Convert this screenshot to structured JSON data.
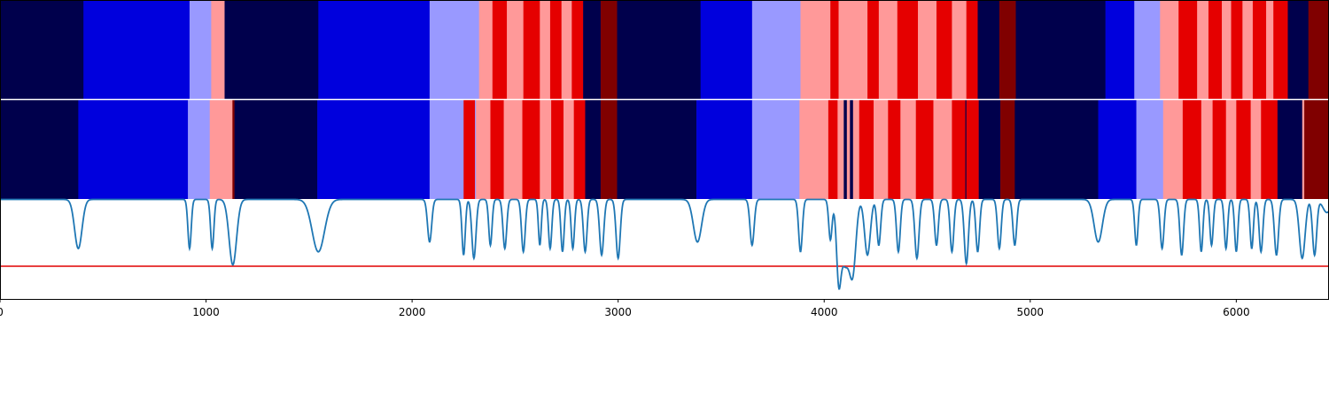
{
  "chart_data": {
    "type": "heatmap",
    "title": "",
    "xlabel": "",
    "ylabel": "",
    "xlim": [
      0,
      6450
    ],
    "x_ticks": [
      0,
      1000,
      2000,
      3000,
      4000,
      5000,
      6000
    ],
    "x_tick_labels": [
      "0",
      "1000",
      "2000",
      "3000",
      "4000",
      "5000",
      "6000"
    ],
    "grid": false,
    "legend": "none",
    "palette": {
      "0": "#00004c",
      "1": "#0000dd",
      "2": "#9999ff",
      "3": "#ff9999",
      "4": "#e50000",
      "5": "#800000"
    },
    "tracks": [
      {
        "segments": [
          [
            0,
            405,
            0
          ],
          [
            405,
            920,
            1
          ],
          [
            920,
            1025,
            2
          ],
          [
            1025,
            1090,
            3
          ],
          [
            1090,
            1545,
            0
          ],
          [
            1545,
            2085,
            1
          ],
          [
            2085,
            2325,
            2
          ],
          [
            2325,
            2390,
            3
          ],
          [
            2390,
            2460,
            4
          ],
          [
            2460,
            2540,
            3
          ],
          [
            2540,
            2620,
            4
          ],
          [
            2620,
            2670,
            3
          ],
          [
            2670,
            2725,
            4
          ],
          [
            2725,
            2775,
            3
          ],
          [
            2775,
            2830,
            4
          ],
          [
            2830,
            2915,
            0
          ],
          [
            2915,
            2995,
            5
          ],
          [
            2995,
            3400,
            0
          ],
          [
            3400,
            3650,
            1
          ],
          [
            3650,
            3885,
            2
          ],
          [
            3885,
            4030,
            3
          ],
          [
            4030,
            4070,
            4
          ],
          [
            4070,
            4210,
            3
          ],
          [
            4210,
            4265,
            4
          ],
          [
            4265,
            4355,
            3
          ],
          [
            4355,
            4455,
            4
          ],
          [
            4455,
            4545,
            3
          ],
          [
            4545,
            4620,
            4
          ],
          [
            4620,
            4690,
            3
          ],
          [
            4690,
            4745,
            4
          ],
          [
            4745,
            4850,
            0
          ],
          [
            4850,
            4930,
            5
          ],
          [
            4930,
            5365,
            0
          ],
          [
            5365,
            5505,
            1
          ],
          [
            5505,
            5630,
            2
          ],
          [
            5630,
            5720,
            3
          ],
          [
            5720,
            5810,
            4
          ],
          [
            5810,
            5865,
            3
          ],
          [
            5865,
            5930,
            4
          ],
          [
            5930,
            5975,
            3
          ],
          [
            5975,
            6030,
            4
          ],
          [
            6030,
            6080,
            3
          ],
          [
            6080,
            6145,
            4
          ],
          [
            6145,
            6180,
            3
          ],
          [
            6180,
            6250,
            4
          ],
          [
            6250,
            6350,
            0
          ],
          [
            6350,
            6450,
            5
          ]
        ]
      },
      {
        "segments": [
          [
            0,
            380,
            0
          ],
          [
            380,
            912,
            1
          ],
          [
            912,
            1018,
            2
          ],
          [
            1018,
            1128,
            3
          ],
          [
            1128,
            1138,
            5
          ],
          [
            1138,
            1540,
            0
          ],
          [
            1540,
            2085,
            1
          ],
          [
            2085,
            2250,
            2
          ],
          [
            2250,
            2305,
            4
          ],
          [
            2305,
            2310,
            2
          ],
          [
            2310,
            2320,
            3
          ],
          [
            2320,
            2380,
            3
          ],
          [
            2380,
            2445,
            4
          ],
          [
            2445,
            2535,
            3
          ],
          [
            2535,
            2620,
            4
          ],
          [
            2620,
            2675,
            3
          ],
          [
            2675,
            2735,
            4
          ],
          [
            2735,
            2785,
            3
          ],
          [
            2785,
            2840,
            4
          ],
          [
            2840,
            2915,
            0
          ],
          [
            2915,
            2995,
            5
          ],
          [
            2995,
            3380,
            0
          ],
          [
            3380,
            3650,
            1
          ],
          [
            3650,
            3880,
            2
          ],
          [
            3880,
            4020,
            3
          ],
          [
            4020,
            4065,
            4
          ],
          [
            4065,
            4095,
            3
          ],
          [
            4095,
            4110,
            0
          ],
          [
            4110,
            4125,
            3
          ],
          [
            4125,
            4140,
            0
          ],
          [
            4140,
            4170,
            3
          ],
          [
            4170,
            4240,
            4
          ],
          [
            4240,
            4310,
            3
          ],
          [
            4310,
            4370,
            4
          ],
          [
            4370,
            4445,
            3
          ],
          [
            4445,
            4530,
            4
          ],
          [
            4530,
            4620,
            3
          ],
          [
            4620,
            4685,
            4
          ],
          [
            4685,
            4690,
            0
          ],
          [
            4690,
            4750,
            4
          ],
          [
            4750,
            4855,
            0
          ],
          [
            4855,
            4925,
            5
          ],
          [
            4925,
            5330,
            0
          ],
          [
            5330,
            5515,
            1
          ],
          [
            5515,
            5645,
            2
          ],
          [
            5645,
            5740,
            3
          ],
          [
            5740,
            5830,
            4
          ],
          [
            5830,
            5885,
            3
          ],
          [
            5885,
            5950,
            4
          ],
          [
            5950,
            6000,
            3
          ],
          [
            6000,
            6070,
            4
          ],
          [
            6070,
            6120,
            3
          ],
          [
            6120,
            6200,
            4
          ],
          [
            6200,
            6320,
            0
          ],
          [
            6320,
            6330,
            3
          ],
          [
            6330,
            6450,
            5
          ]
        ]
      }
    ],
    "line": {
      "color": "#1f77b4",
      "baseline": 1.0,
      "threshold": 0.0,
      "threshold_color": "#e00000",
      "ylim": [
        -0.5,
        1.0
      ],
      "dips": [
        [
          380,
          0.75,
          18
        ],
        [
          920,
          0.75,
          8
        ],
        [
          1030,
          0.75,
          8
        ],
        [
          1130,
          1.0,
          18
        ],
        [
          1545,
          0.8,
          30
        ],
        [
          2085,
          0.65,
          10
        ],
        [
          2250,
          0.85,
          8
        ],
        [
          2300,
          0.9,
          10
        ],
        [
          2380,
          0.7,
          8
        ],
        [
          2450,
          0.75,
          9
        ],
        [
          2540,
          0.8,
          9
        ],
        [
          2620,
          0.7,
          7
        ],
        [
          2670,
          0.75,
          8
        ],
        [
          2730,
          0.8,
          8
        ],
        [
          2780,
          0.75,
          8
        ],
        [
          2840,
          0.8,
          9
        ],
        [
          2920,
          0.85,
          10
        ],
        [
          3000,
          0.9,
          10
        ],
        [
          3385,
          0.65,
          20
        ],
        [
          3650,
          0.7,
          10
        ],
        [
          3885,
          0.8,
          9
        ],
        [
          4030,
          0.6,
          8
        ],
        [
          4070,
          0.85,
          10
        ],
        [
          4100,
          1.0,
          25
        ],
        [
          4140,
          0.9,
          15
        ],
        [
          4210,
          0.85,
          14
        ],
        [
          4265,
          0.7,
          9
        ],
        [
          4360,
          0.8,
          9
        ],
        [
          4450,
          0.9,
          10
        ],
        [
          4545,
          0.7,
          9
        ],
        [
          4620,
          0.8,
          9
        ],
        [
          4690,
          0.98,
          10
        ],
        [
          4745,
          0.8,
          9
        ],
        [
          4850,
          0.75,
          9
        ],
        [
          4925,
          0.7,
          9
        ],
        [
          5330,
          0.65,
          20
        ],
        [
          5515,
          0.7,
          8
        ],
        [
          5640,
          0.75,
          9
        ],
        [
          5735,
          0.85,
          9
        ],
        [
          5830,
          0.8,
          8
        ],
        [
          5880,
          0.7,
          8
        ],
        [
          5950,
          0.75,
          8
        ],
        [
          6000,
          0.8,
          8
        ],
        [
          6075,
          0.75,
          8
        ],
        [
          6120,
          0.8,
          9
        ],
        [
          6195,
          0.85,
          10
        ],
        [
          6320,
          0.9,
          14
        ],
        [
          6380,
          0.85,
          10
        ],
        [
          6440,
          0.2,
          20
        ]
      ]
    }
  }
}
